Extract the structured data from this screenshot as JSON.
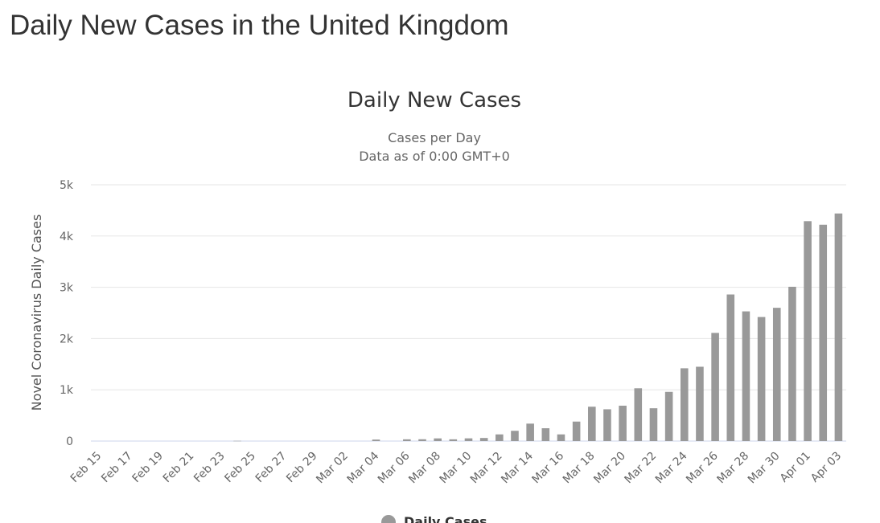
{
  "page": {
    "title": "Daily New Cases in the United Kingdom"
  },
  "colors": {
    "bar": "#999999",
    "grid": "#e6e6e6",
    "text": "#333333"
  },
  "chart_data": {
    "type": "bar",
    "title": "Daily New Cases",
    "subtitle": [
      "Cases per Day",
      "Data as of 0:00 GMT+0"
    ],
    "xlabel": "",
    "ylabel": "Novel Coronavirus Daily Cases",
    "ylim": [
      0,
      5000
    ],
    "yticks": [
      0,
      1000,
      2000,
      3000,
      4000,
      5000
    ],
    "ytick_labels": [
      "0",
      "1k",
      "2k",
      "3k",
      "4k",
      "5k"
    ],
    "grid": true,
    "legend_position": "bottom-center",
    "categories": [
      "Feb 15",
      "Feb 16",
      "Feb 17",
      "Feb 18",
      "Feb 19",
      "Feb 20",
      "Feb 21",
      "Feb 22",
      "Feb 23",
      "Feb 24",
      "Feb 25",
      "Feb 26",
      "Feb 27",
      "Feb 28",
      "Feb 29",
      "Mar 01",
      "Mar 02",
      "Mar 03",
      "Mar 04",
      "Mar 05",
      "Mar 06",
      "Mar 07",
      "Mar 08",
      "Mar 09",
      "Mar 10",
      "Mar 11",
      "Mar 12",
      "Mar 13",
      "Mar 14",
      "Mar 15",
      "Mar 16",
      "Mar 17",
      "Mar 18",
      "Mar 19",
      "Mar 20",
      "Mar 21",
      "Mar 22",
      "Mar 23",
      "Mar 24",
      "Mar 25",
      "Mar 26",
      "Mar 27",
      "Mar 28",
      "Mar 29",
      "Mar 30",
      "Mar 31",
      "Apr 01",
      "Apr 02",
      "Apr 03"
    ],
    "xtick_labels": [
      "Feb 15",
      "Feb 17",
      "Feb 19",
      "Feb 21",
      "Feb 23",
      "Feb 25",
      "Feb 27",
      "Feb 29",
      "Mar 02",
      "Mar 04",
      "Mar 06",
      "Mar 08",
      "Mar 10",
      "Mar 12",
      "Mar 14",
      "Mar 16",
      "Mar 18",
      "Mar 20",
      "Mar 22",
      "Mar 24",
      "Mar 26",
      "Mar 28",
      "Mar 30",
      "Apr 01",
      "Apr 03"
    ],
    "series": [
      {
        "name": "Daily Cases",
        "values": [
          0,
          0,
          0,
          0,
          0,
          0,
          0,
          0,
          0,
          4,
          0,
          0,
          0,
          0,
          0,
          0,
          0,
          0,
          29,
          0,
          34,
          35,
          52,
          34,
          53,
          60,
          130,
          200,
          340,
          250,
          130,
          380,
          670,
          620,
          690,
          1030,
          640,
          960,
          1420,
          1450,
          2110,
          2860,
          2530,
          2420,
          2600,
          3010,
          4290,
          4220,
          4440
        ]
      }
    ]
  }
}
